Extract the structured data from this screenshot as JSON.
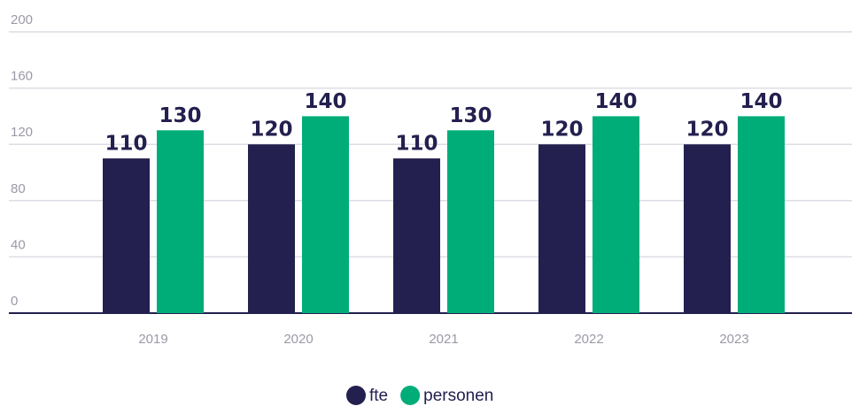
{
  "chart_data": {
    "type": "bar",
    "categories": [
      "2019",
      "2020",
      "2021",
      "2022",
      "2023"
    ],
    "series": [
      {
        "name": "fte",
        "color": "#23204f",
        "values": [
          110,
          120,
          110,
          120,
          120
        ]
      },
      {
        "name": "personen",
        "color": "#00ad78",
        "values": [
          130,
          140,
          130,
          140,
          140
        ]
      }
    ],
    "ylim": [
      0,
      200
    ],
    "yticks": [
      0,
      40,
      80,
      120,
      160,
      200
    ],
    "grid": true,
    "legend": "bottom"
  }
}
